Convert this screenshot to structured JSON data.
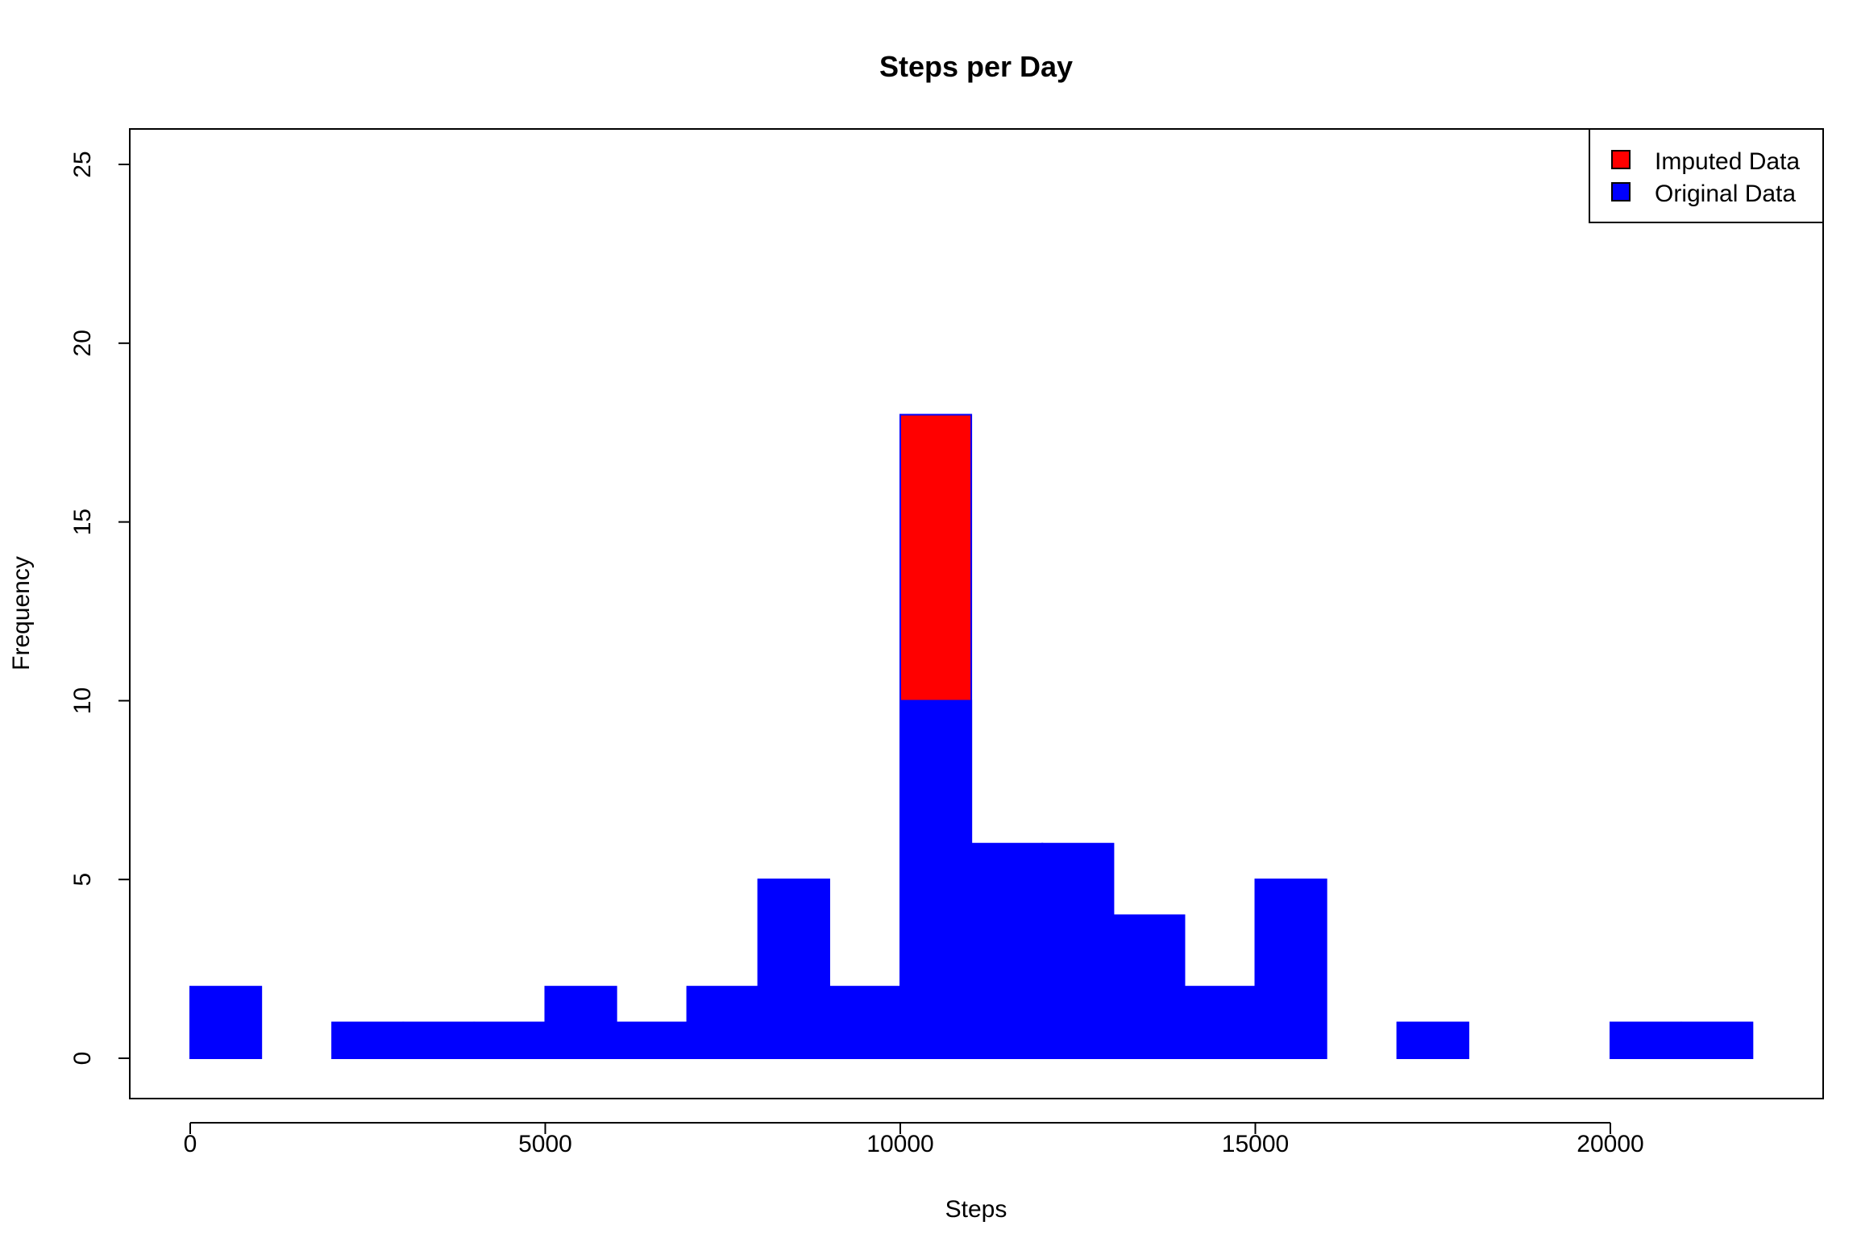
{
  "chart_data": {
    "type": "bar",
    "title": "Steps per Day",
    "xlabel": "Steps",
    "ylabel": "Frequency",
    "xlim": [
      0,
      22000
    ],
    "ylim": [
      0,
      25
    ],
    "bin_width": 1000,
    "bins": [
      0,
      1000,
      2000,
      3000,
      4000,
      5000,
      6000,
      7000,
      8000,
      9000,
      10000,
      11000,
      12000,
      13000,
      14000,
      15000,
      16000,
      17000,
      18000,
      19000,
      20000,
      21000
    ],
    "series": [
      {
        "name": "Imputed Data",
        "color": "#ff0000",
        "values": [
          2,
          0,
          1,
          1,
          1,
          2,
          1,
          2,
          5,
          2,
          18,
          6,
          6,
          4,
          2,
          5,
          0,
          1,
          0,
          0,
          1,
          1
        ]
      },
      {
        "name": "Original Data",
        "color": "#0000ff",
        "values": [
          2,
          0,
          1,
          1,
          1,
          2,
          1,
          2,
          5,
          2,
          10,
          6,
          6,
          4,
          2,
          5,
          0,
          1,
          0,
          0,
          1,
          1
        ]
      }
    ],
    "x_ticks": [
      "0",
      "5000",
      "10000",
      "15000",
      "20000"
    ],
    "y_ticks": [
      "0",
      "5",
      "10",
      "15",
      "20",
      "25"
    ],
    "legend": {
      "position": "top-right",
      "items": [
        {
          "label": "Imputed Data",
          "color": "#ff0000"
        },
        {
          "label": "Original Data",
          "color": "#0000ff"
        }
      ]
    },
    "grid": false
  }
}
